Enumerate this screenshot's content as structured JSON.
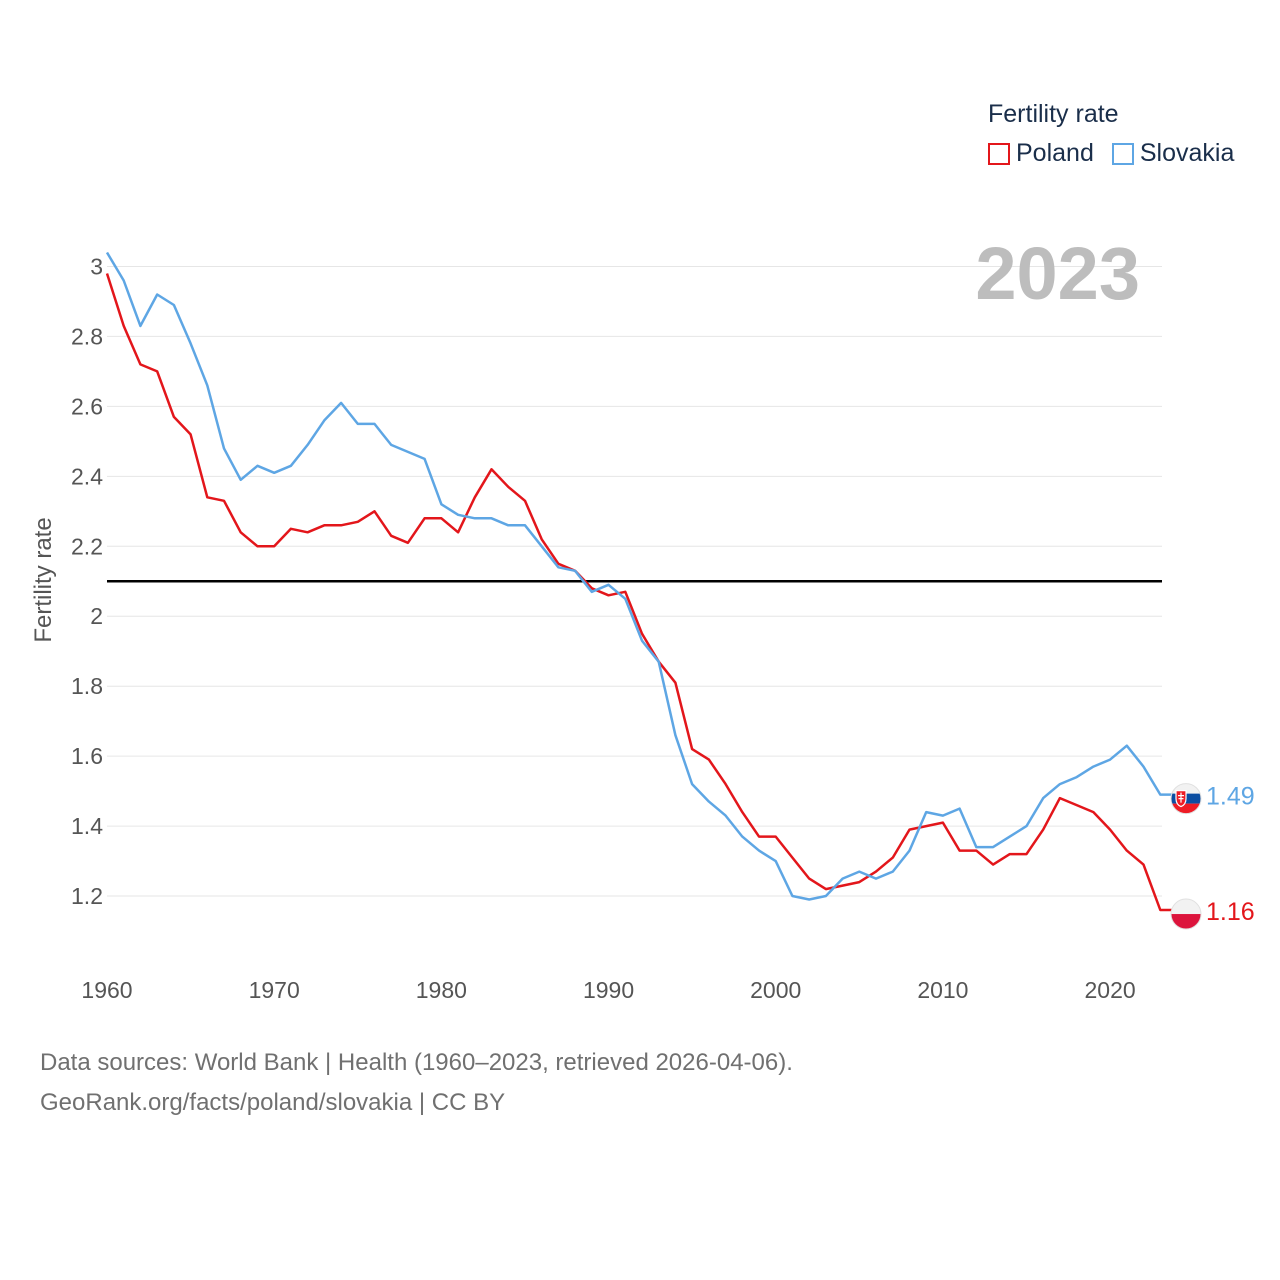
{
  "legend": {
    "title": "Fertility rate",
    "items": [
      {
        "label": "Poland",
        "color": "#e3161b"
      },
      {
        "label": "Slovakia",
        "color": "#5ea6e4"
      }
    ]
  },
  "year_label": "2023",
  "footer": {
    "line1": "Data sources: World Bank | Health (1960–2023, retrieved 2026-04-06).",
    "line2": "GeoRank.org/facts/poland/slovakia | CC BY"
  },
  "chart_data": {
    "type": "line",
    "title": "",
    "xlabel": "",
    "ylabel": "Fertility rate",
    "xlim": [
      1960,
      2024.6
    ],
    "ylim": [
      1.0,
      3.07
    ],
    "x_ticks": [
      1960,
      1970,
      1980,
      1990,
      2000,
      2010,
      2020
    ],
    "y_ticks": [
      1.2,
      1.4,
      1.6,
      1.8,
      2,
      2.2,
      2.4,
      2.6,
      2.8,
      3
    ],
    "grid": true,
    "reference_line": 2.1,
    "x": [
      1960,
      1961,
      1962,
      1963,
      1964,
      1965,
      1966,
      1967,
      1968,
      1969,
      1970,
      1971,
      1972,
      1973,
      1974,
      1975,
      1976,
      1977,
      1978,
      1979,
      1980,
      1981,
      1982,
      1983,
      1984,
      1985,
      1986,
      1987,
      1988,
      1989,
      1990,
      1991,
      1992,
      1993,
      1994,
      1995,
      1996,
      1997,
      1998,
      1999,
      2000,
      2001,
      2002,
      2003,
      2004,
      2005,
      2006,
      2007,
      2008,
      2009,
      2010,
      2011,
      2012,
      2013,
      2014,
      2015,
      2016,
      2017,
      2018,
      2019,
      2020,
      2021,
      2022,
      2023
    ],
    "series": [
      {
        "name": "Poland",
        "color": "#e3161b",
        "end_label": "1.16",
        "values": [
          2.98,
          2.83,
          2.72,
          2.7,
          2.57,
          2.52,
          2.34,
          2.33,
          2.24,
          2.2,
          2.2,
          2.25,
          2.24,
          2.26,
          2.26,
          2.27,
          2.3,
          2.23,
          2.21,
          2.28,
          2.28,
          2.24,
          2.34,
          2.42,
          2.37,
          2.33,
          2.22,
          2.15,
          2.13,
          2.08,
          2.06,
          2.07,
          1.95,
          1.87,
          1.81,
          1.62,
          1.59,
          1.52,
          1.44,
          1.37,
          1.37,
          1.31,
          1.25,
          1.22,
          1.23,
          1.24,
          1.27,
          1.31,
          1.39,
          1.4,
          1.41,
          1.33,
          1.33,
          1.29,
          1.32,
          1.32,
          1.39,
          1.48,
          1.46,
          1.44,
          1.39,
          1.33,
          1.29,
          1.16
        ]
      },
      {
        "name": "Slovakia",
        "color": "#5ea6e4",
        "end_label": "1.49",
        "values": [
          3.04,
          2.96,
          2.83,
          2.92,
          2.89,
          2.78,
          2.66,
          2.48,
          2.39,
          2.43,
          2.41,
          2.43,
          2.49,
          2.56,
          2.61,
          2.55,
          2.55,
          2.49,
          2.47,
          2.45,
          2.32,
          2.29,
          2.28,
          2.28,
          2.26,
          2.26,
          2.2,
          2.14,
          2.13,
          2.07,
          2.09,
          2.05,
          1.93,
          1.87,
          1.66,
          1.52,
          1.47,
          1.43,
          1.37,
          1.33,
          1.3,
          1.2,
          1.19,
          1.2,
          1.25,
          1.27,
          1.25,
          1.27,
          1.33,
          1.44,
          1.43,
          1.45,
          1.34,
          1.34,
          1.37,
          1.4,
          1.48,
          1.52,
          1.54,
          1.57,
          1.59,
          1.63,
          1.57,
          1.49
        ]
      }
    ]
  }
}
